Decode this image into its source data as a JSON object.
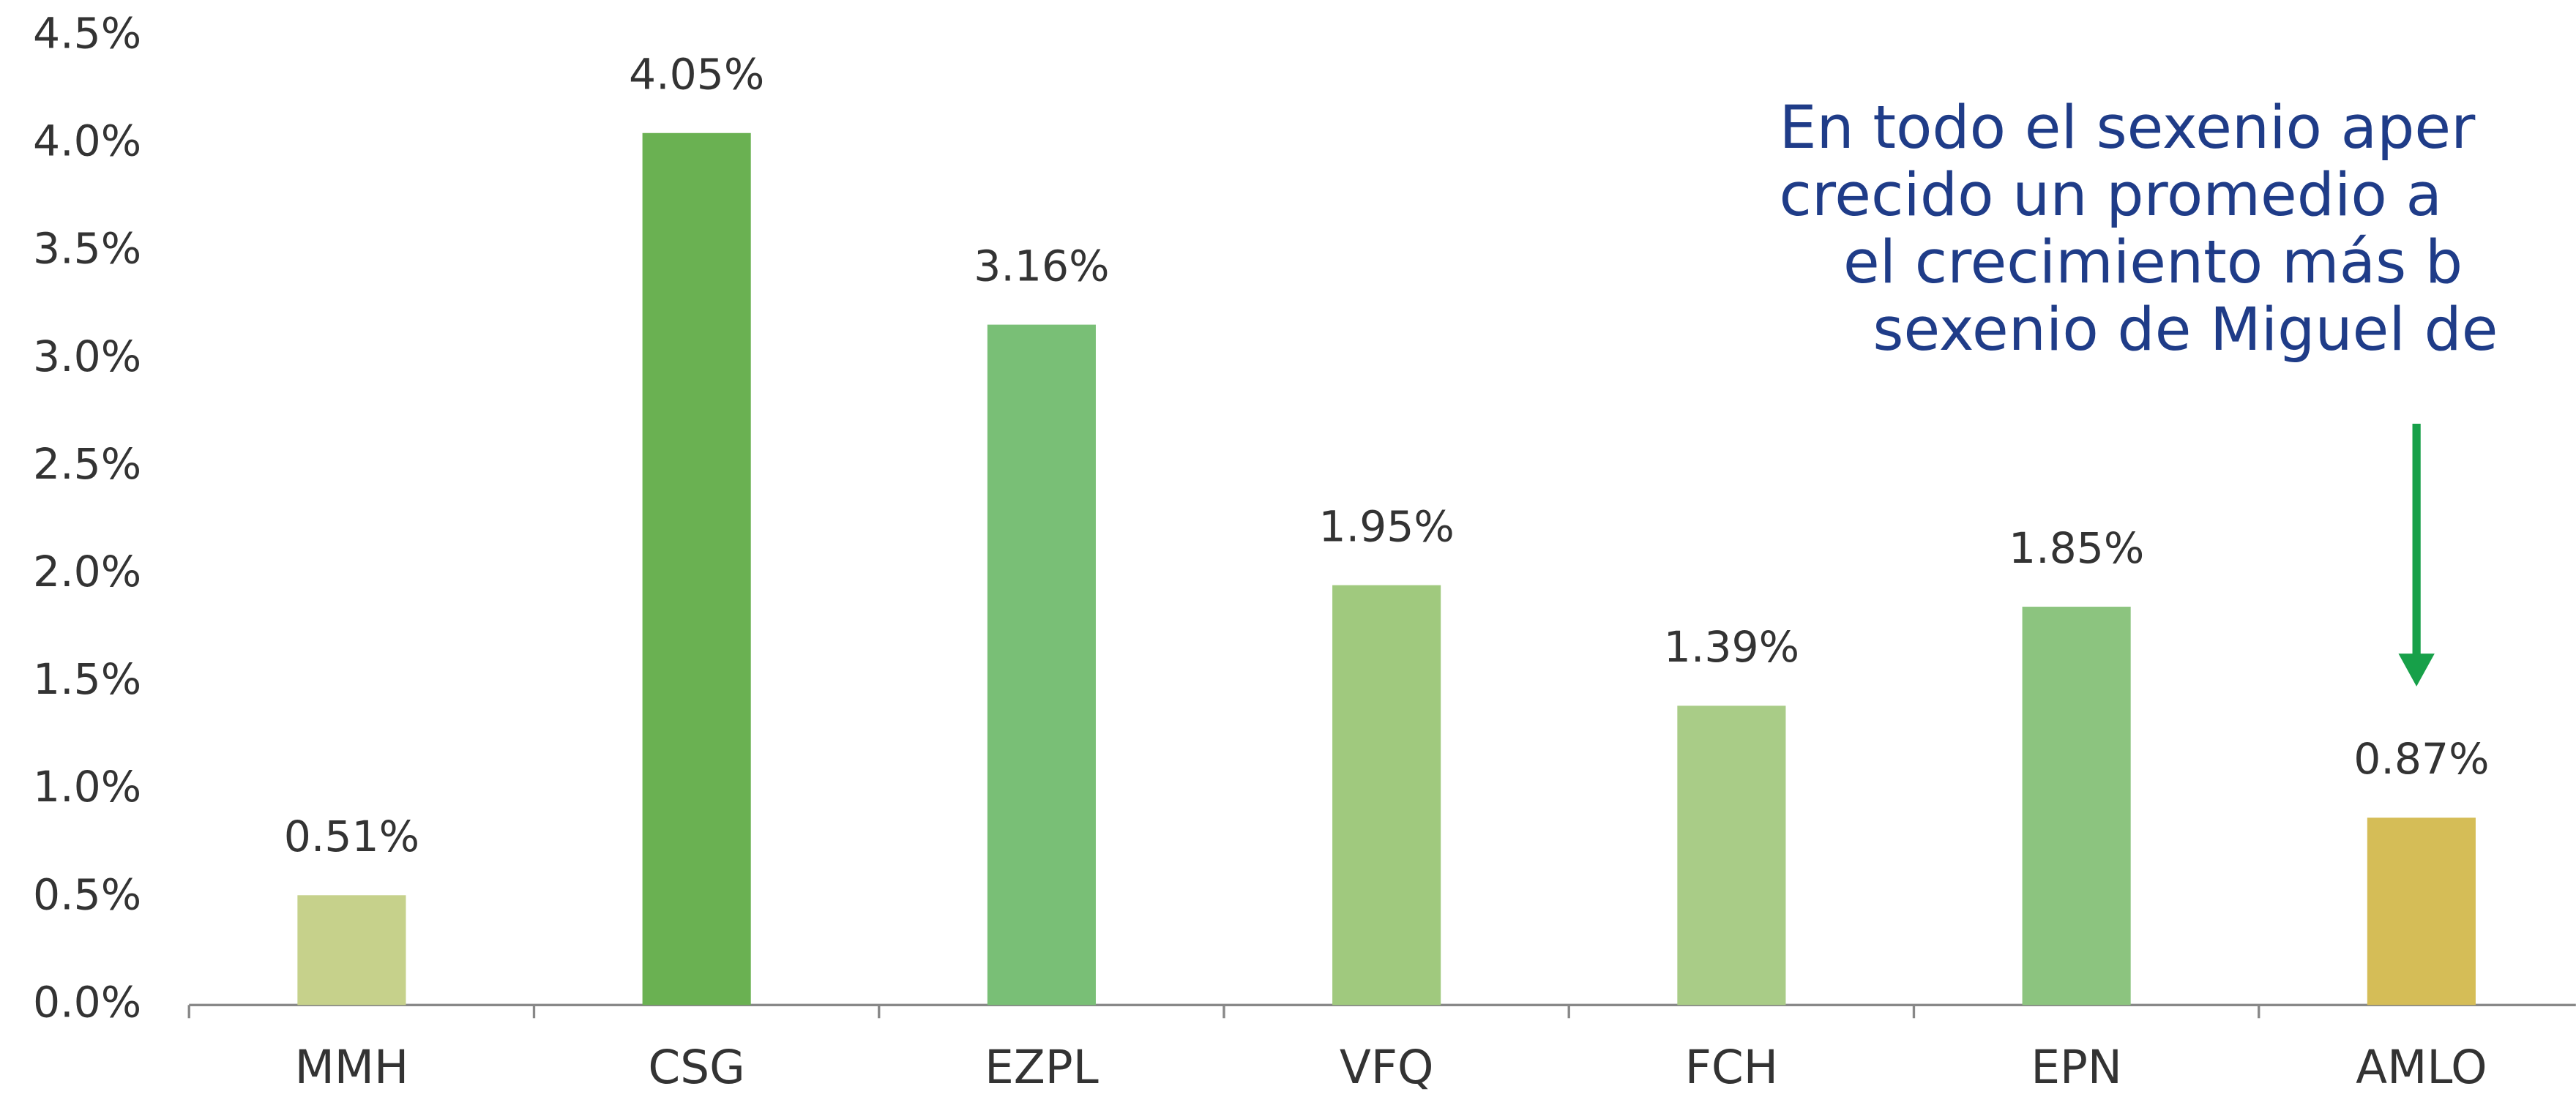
{
  "chart_data": {
    "type": "bar",
    "categories": [
      "MMH",
      "CSG",
      "EZPL",
      "VFQ",
      "FCH",
      "EPN",
      "AMLO"
    ],
    "values": [
      0.51,
      4.05,
      3.16,
      1.95,
      1.39,
      1.85,
      0.87
    ],
    "value_labels": [
      "0.51%",
      "4.05%",
      "3.16%",
      "1.95%",
      "1.39%",
      "1.85%",
      "0.87%"
    ],
    "colors": [
      "#c6d18b",
      "#6ab152",
      "#79bf76",
      "#a0c97e",
      "#a9cc87",
      "#8cc47f",
      "#d5bd57"
    ],
    "ylim": [
      0,
      4.5
    ],
    "yticks": [
      {
        "value": 0,
        "label": "0.0%"
      },
      {
        "value": 0.5,
        "label": "0.5%"
      },
      {
        "value": 1,
        "label": "1.0%"
      },
      {
        "value": 1.5,
        "label": "1.5%"
      },
      {
        "value": 2,
        "label": "2.0%"
      },
      {
        "value": 2.5,
        "label": "2.5%"
      },
      {
        "value": 3,
        "label": "3.0%"
      },
      {
        "value": 3.5,
        "label": "3.5%"
      },
      {
        "value": 4,
        "label": "4.0%"
      },
      {
        "value": 4.5,
        "label": "4.5%"
      }
    ],
    "grid": false,
    "annotation": [
      "En todo el sexenio aper",
      "crecido un promedio a",
      "el crecimiento más b",
      "sexenio de Miguel de"
    ]
  }
}
